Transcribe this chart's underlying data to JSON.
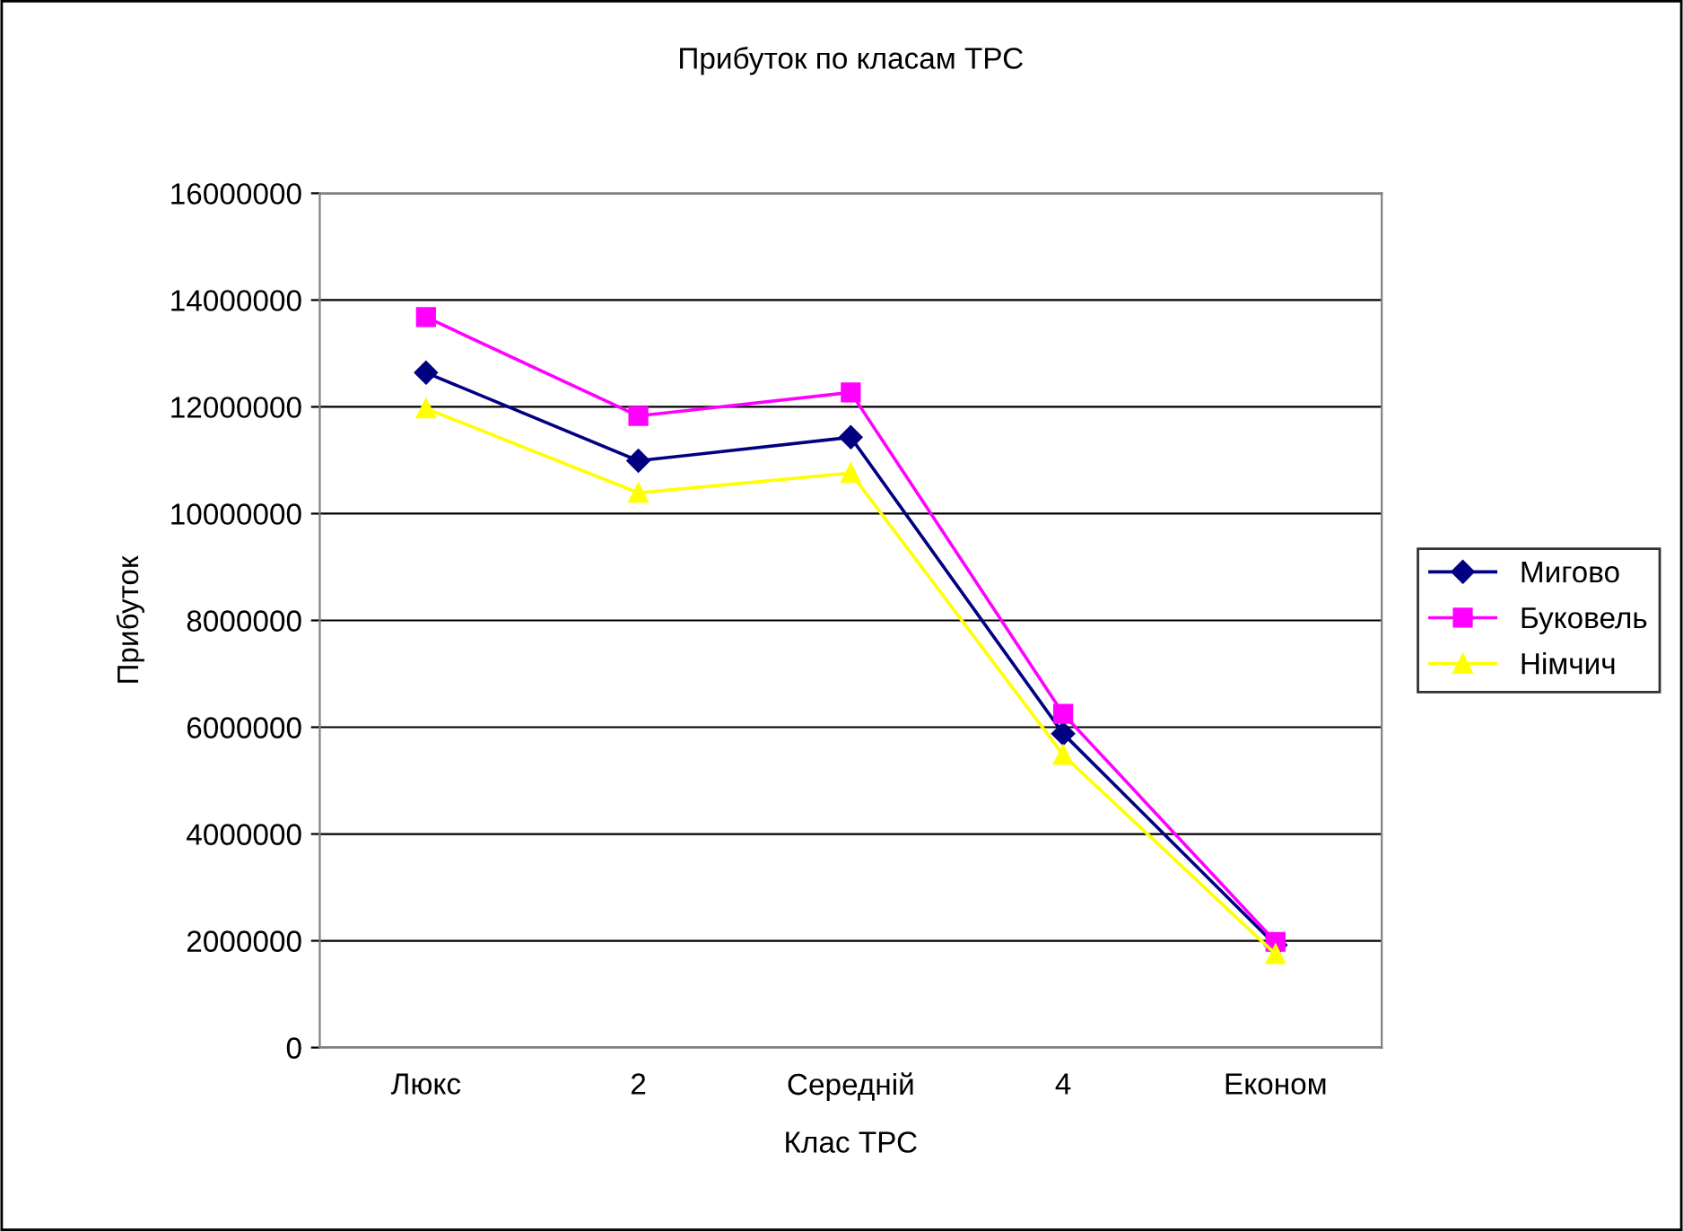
{
  "chart_data": {
    "type": "line",
    "title": "Прибуток по класам ТРС",
    "xlabel": "Клас ТРС",
    "ylabel": "Прибуток",
    "categories": [
      "Люкс",
      "2",
      "Середній",
      "4",
      "Економ"
    ],
    "series": [
      {
        "name": "Мигово",
        "color": "#000080",
        "marker": "diamond",
        "values": [
          12640000,
          10990000,
          11430000,
          5880000,
          1920000
        ]
      },
      {
        "name": "Буковель",
        "color": "#ff00ff",
        "marker": "square",
        "values": [
          13680000,
          11830000,
          12270000,
          6250000,
          1980000
        ]
      },
      {
        "name": "Німчич",
        "color": "#ffff00",
        "marker": "triangle",
        "values": [
          11970000,
          10390000,
          10760000,
          5480000,
          1750000
        ]
      }
    ],
    "ylim": [
      0,
      16000000
    ],
    "yticks": [
      0,
      2000000,
      4000000,
      6000000,
      8000000,
      10000000,
      12000000,
      14000000,
      16000000
    ],
    "grid": "y",
    "legend": "right",
    "line_style": "solid"
  }
}
